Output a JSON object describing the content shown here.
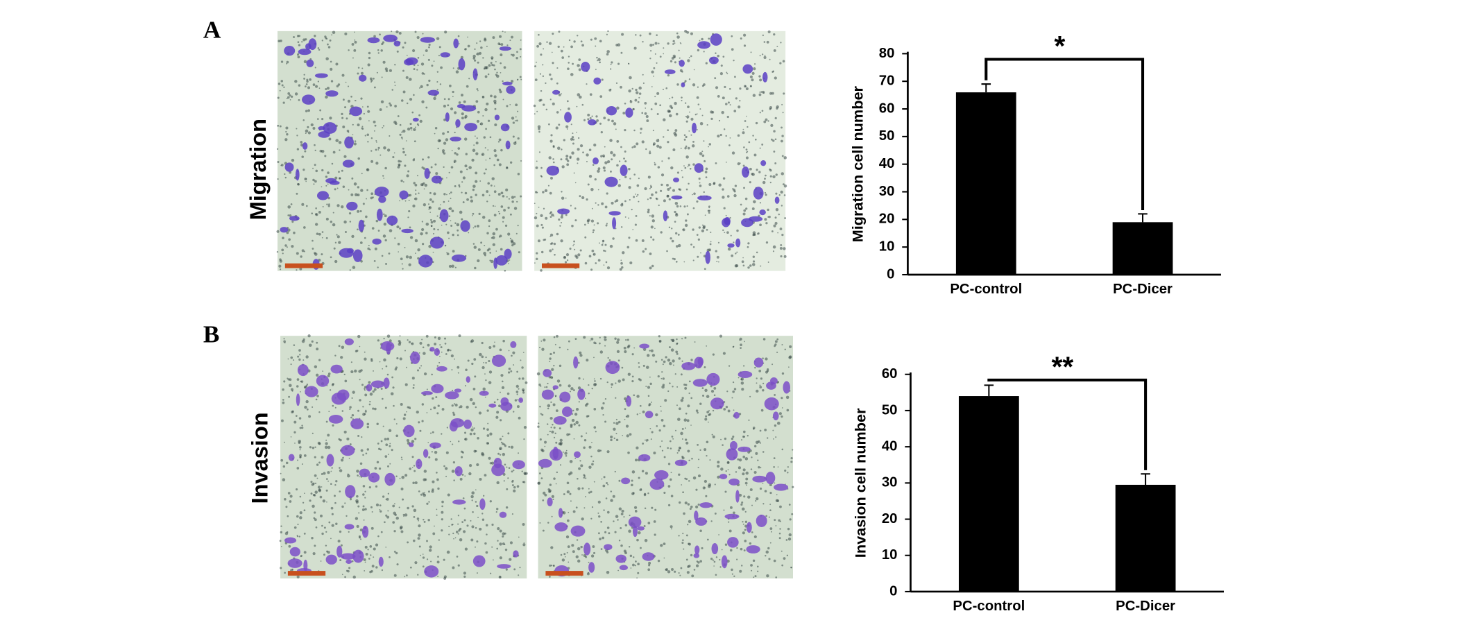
{
  "figure": {
    "panels": [
      {
        "label": "A",
        "row_label": "Migration"
      },
      {
        "label": "B",
        "row_label": "Invasion"
      }
    ]
  },
  "chart_data": [
    {
      "type": "bar",
      "y_label": "Migration cell number",
      "categories": [
        "PC-control",
        "PC-Dicer"
      ],
      "values": [
        66,
        19
      ],
      "errors": [
        3,
        3
      ],
      "color": "#000000",
      "ylim": [
        0,
        80
      ],
      "yticks": [
        0,
        10,
        20,
        30,
        40,
        50,
        60,
        70,
        80
      ],
      "annotation": "*"
    },
    {
      "type": "bar",
      "y_label": "Invasion cell number",
      "categories": [
        "PC-control",
        "PC-Dicer"
      ],
      "values": [
        54,
        29.5
      ],
      "errors": [
        3,
        3
      ],
      "color": "#000000",
      "ylim": [
        0,
        60
      ],
      "yticks": [
        0,
        10,
        20,
        30,
        40,
        50,
        60
      ],
      "annotation": "**"
    }
  ]
}
